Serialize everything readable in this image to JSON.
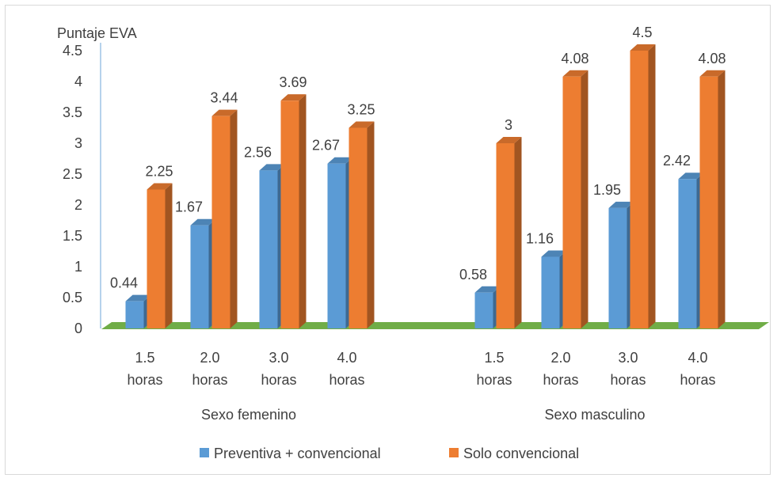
{
  "chart_data": {
    "type": "bar",
    "title": "",
    "ylabel": "Puntaje EVA",
    "xlabel": "",
    "ylim": [
      0,
      4.5
    ],
    "yticks": [
      "0",
      "0.5",
      "1",
      "1.5",
      "2",
      "2.5",
      "3",
      "3.5",
      "4",
      "4.5"
    ],
    "grid": false,
    "three_d": true,
    "legend_position": "bottom",
    "groups": [
      {
        "label": "Sexo femenino",
        "categories": [
          [
            "1.5",
            "horas"
          ],
          [
            "2.0",
            "horas"
          ],
          [
            "3.0",
            "horas"
          ],
          [
            "4.0",
            "horas"
          ]
        ]
      },
      {
        "label": "Sexo masculino",
        "categories": [
          [
            "1.5",
            "horas"
          ],
          [
            "2.0",
            "horas"
          ],
          [
            "3.0",
            "horas"
          ],
          [
            "4.0",
            "horas"
          ]
        ]
      }
    ],
    "series": [
      {
        "name": "Preventiva + convencional",
        "color": "#5b9bd5",
        "values": [
          0.44,
          1.67,
          2.56,
          2.67,
          0.58,
          1.16,
          1.95,
          2.42
        ]
      },
      {
        "name": "Solo convencional",
        "color": "#ed7d31",
        "values": [
          2.25,
          3.44,
          3.69,
          3.25,
          3,
          4.08,
          4.5,
          4.08
        ]
      }
    ],
    "floor_color": "#70ad47"
  }
}
